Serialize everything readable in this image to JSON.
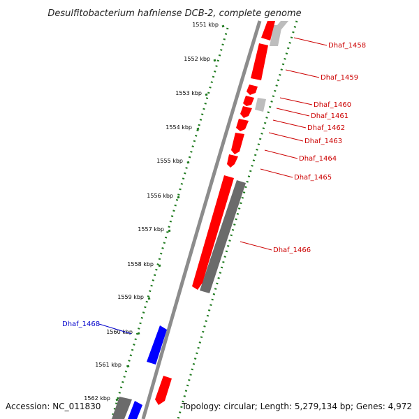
{
  "title": "Desulfitobacterium hafniense DCB-2, complete genome",
  "footer": {
    "accession": "Accession: NC_011830",
    "summary": "Topology: circular; Length: 5,279,134 bp; Genes: 4,972"
  },
  "colors": {
    "forward_gene": "#ff0000",
    "reverse_gene": "#6b6b6b",
    "pseudo_gene": "#bdbdbd",
    "highlight_gene": "#0000ff",
    "backbone": "#8c8c8c",
    "ticks": "#1f7a1f",
    "label_red": "#cc0000",
    "label_blue": "#0000cc"
  },
  "kbp_ticks": [
    "1551 kbp",
    "1552 kbp",
    "1553 kbp",
    "1554 kbp",
    "1555 kbp",
    "1556 kbp",
    "1557 kbp",
    "1558 kbp",
    "1559 kbp",
    "1560 kbp",
    "1561 kbp",
    "1562 kbp"
  ],
  "gene_labels": [
    {
      "text": "Dhaf_1458",
      "color": "red"
    },
    {
      "text": "Dhaf_1459",
      "color": "red"
    },
    {
      "text": "Dhaf_1460",
      "color": "red"
    },
    {
      "text": "Dhaf_1461",
      "color": "red"
    },
    {
      "text": "Dhaf_1462",
      "color": "red"
    },
    {
      "text": "Dhaf_1463",
      "color": "red"
    },
    {
      "text": "Dhaf_1464",
      "color": "red"
    },
    {
      "text": "Dhaf_1465",
      "color": "red"
    },
    {
      "text": "Dhaf_1466",
      "color": "red"
    },
    {
      "text": "Dhaf_1468",
      "color": "blue"
    }
  ]
}
